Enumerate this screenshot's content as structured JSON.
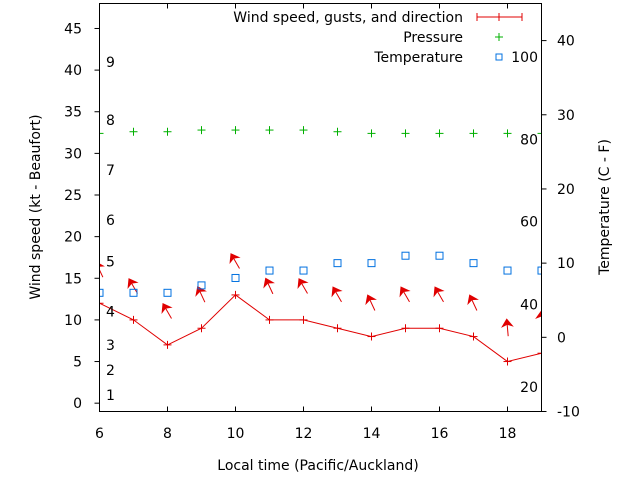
{
  "chart_data": {
    "type": "line",
    "title": "",
    "xlabel": "Local time (Pacific/Auckland)",
    "ylabel": "Wind speed (kt - Beaufort)",
    "y2label": "Temperature (C - F)",
    "xlim": [
      6,
      19
    ],
    "ylim": [
      -1,
      48
    ],
    "y2lim": [
      -10,
      45
    ],
    "grid": false,
    "legend_position": "top-right",
    "x_ticks": [
      "6",
      "8",
      "10",
      "12",
      "14",
      "16",
      "18"
    ],
    "x_tick_values": [
      6,
      8,
      10,
      12,
      14,
      16,
      18
    ],
    "y_ticks": [
      "0",
      "5",
      "10",
      "15",
      "20",
      "25",
      "30",
      "35",
      "40",
      "45"
    ],
    "y_tick_values": [
      0,
      5,
      10,
      15,
      20,
      25,
      30,
      35,
      40,
      45
    ],
    "y2_ticks": [
      "-10",
      "0",
      "10",
      "20",
      "30",
      "40"
    ],
    "y2_tick_values": [
      -10,
      0,
      10,
      20,
      30,
      40
    ],
    "beaufort_labels": [
      {
        "label": "1",
        "kt": 1
      },
      {
        "label": "2",
        "kt": 4
      },
      {
        "label": "3",
        "kt": 7
      },
      {
        "label": "4",
        "kt": 11
      },
      {
        "label": "5",
        "kt": 17
      },
      {
        "label": "6",
        "kt": 22
      },
      {
        "label": "7",
        "kt": 28
      },
      {
        "label": "8",
        "kt": 34
      },
      {
        "label": "9",
        "kt": 41
      }
    ],
    "fahrenheit_labels": [
      {
        "label": "20",
        "celsius": -6.7
      },
      {
        "label": "40",
        "celsius": 4.4
      },
      {
        "label": "60",
        "celsius": 15.6
      },
      {
        "label": "80",
        "celsius": 26.7
      },
      {
        "label": "100",
        "celsius": 37.8
      }
    ],
    "legend": [
      {
        "name": "Wind speed, gusts, and direction",
        "color": "#e00000",
        "marker": "line-plus"
      },
      {
        "name": "Pressure",
        "color": "#00b000",
        "marker": "plus"
      },
      {
        "name": "Temperature",
        "color": "#0070e0",
        "marker": "square"
      }
    ],
    "x": [
      6,
      7,
      8,
      9,
      10,
      11,
      12,
      13,
      14,
      15,
      16,
      17,
      18,
      19
    ],
    "series": [
      {
        "name": "Wind speed, gusts, and direction",
        "color": "#e00000",
        "axis": "left",
        "values": [
          12,
          10,
          7,
          9,
          13,
          10,
          10,
          9,
          8,
          9,
          9,
          8,
          5,
          6
        ],
        "gusts": [
          16,
          14,
          11,
          13,
          17,
          14,
          14,
          13,
          12,
          13,
          13,
          12,
          9,
          10
        ],
        "direction_deg": [
          335,
          330,
          330,
          335,
          330,
          335,
          330,
          330,
          335,
          330,
          330,
          335,
          355,
          0
        ]
      },
      {
        "name": "Pressure",
        "color": "#00b000",
        "axis": "left",
        "values": [
          32.4,
          32.6,
          32.6,
          32.8,
          32.8,
          32.8,
          32.8,
          32.6,
          32.4,
          32.4,
          32.4,
          32.4,
          32.4,
          32.4
        ]
      },
      {
        "name": "Temperature",
        "color": "#0070e0",
        "axis": "right",
        "values": [
          6,
          6,
          6,
          7,
          8,
          9,
          9,
          10,
          10,
          11,
          11,
          10,
          9,
          9
        ]
      }
    ]
  }
}
